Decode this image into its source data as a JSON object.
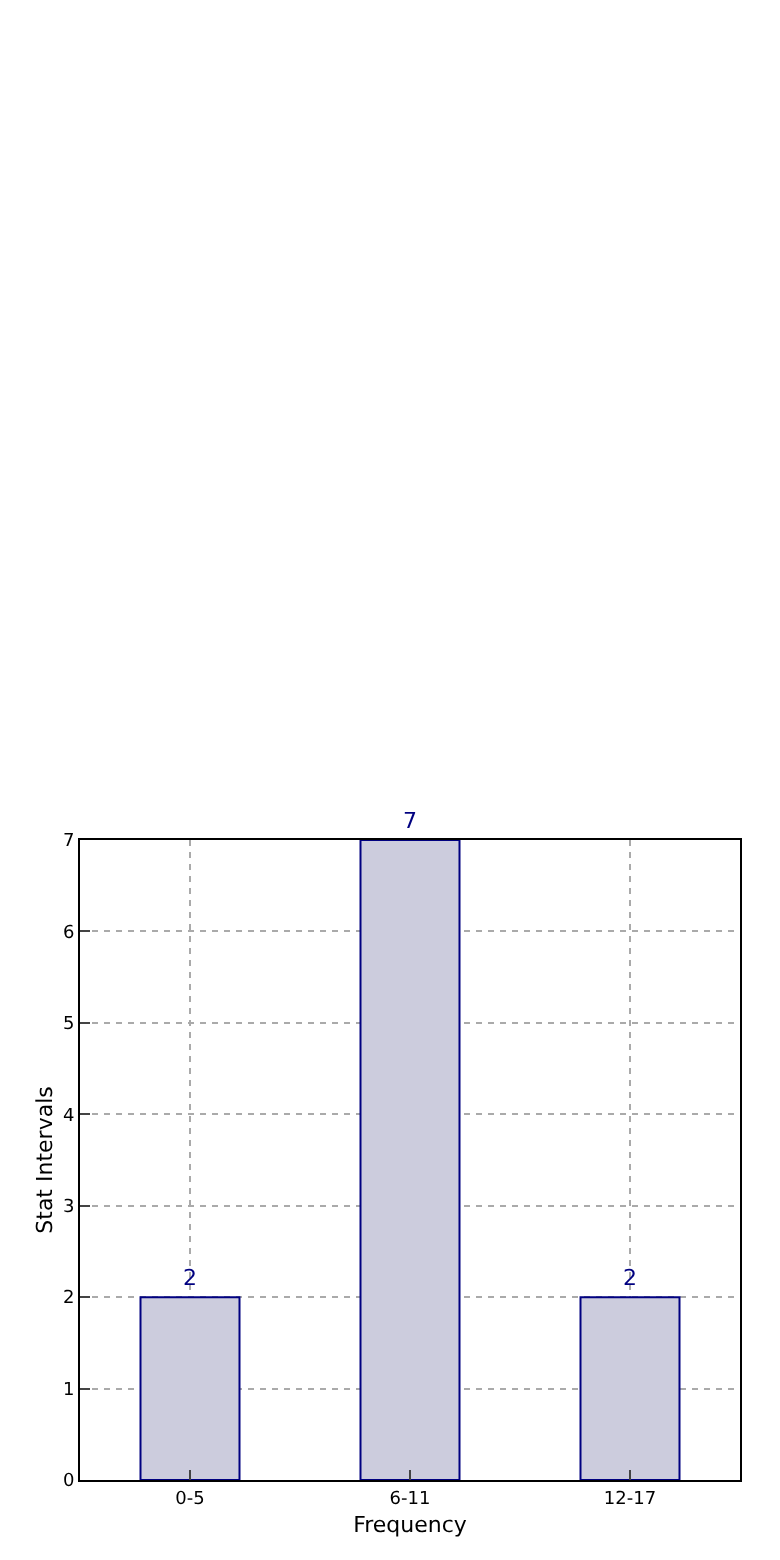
{
  "chart_data": {
    "type": "bar",
    "xlabel": "Frequency",
    "ylabel": "Stat Intervals",
    "categories": [
      "0-5",
      "6-11",
      "12-17"
    ],
    "series": [
      {
        "color": "#ccccdd",
        "values": [
          2,
          7,
          2
        ]
      }
    ],
    "ylim": [
      0,
      7
    ],
    "yticks": [
      0,
      1,
      2,
      3,
      4,
      5,
      6,
      7
    ],
    "grid": true,
    "data_labels": true
  }
}
